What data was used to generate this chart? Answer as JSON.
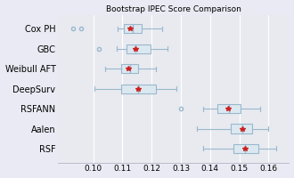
{
  "title": "Bootstrap IPEC Score Comparison",
  "categories": [
    "Cox PH",
    "GBC",
    "Weibull AFT",
    "DeepSurv",
    "RSFANN",
    "Aalen",
    "RSF"
  ],
  "xlim": [
    0.088,
    0.167
  ],
  "xticks": [
    0.1,
    0.11,
    0.12,
    0.13,
    0.14,
    0.15,
    0.16
  ],
  "boxes": [
    {
      "whislo": 0.1085,
      "q1": 0.1105,
      "med": 0.1135,
      "q3": 0.1165,
      "whishi": 0.1235,
      "mean": 0.1125,
      "fliers": [
        0.093,
        0.096
      ]
    },
    {
      "whislo": 0.108,
      "q1": 0.1115,
      "med": 0.1145,
      "q3": 0.1195,
      "whishi": 0.1255,
      "mean": 0.1145,
      "fliers": [
        0.102
      ]
    },
    {
      "whislo": 0.104,
      "q1": 0.1095,
      "med": 0.1125,
      "q3": 0.1155,
      "whishi": 0.1215,
      "mean": 0.112,
      "fliers": []
    },
    {
      "whislo": 0.1005,
      "q1": 0.1095,
      "med": 0.1155,
      "q3": 0.1215,
      "whishi": 0.1285,
      "mean": 0.1155,
      "fliers": []
    },
    {
      "whislo": 0.1375,
      "q1": 0.1425,
      "med": 0.1465,
      "q3": 0.1505,
      "whishi": 0.157,
      "mean": 0.146,
      "fliers": [
        0.13
      ]
    },
    {
      "whislo": 0.1355,
      "q1": 0.147,
      "med": 0.151,
      "q3": 0.1545,
      "whishi": 0.16,
      "mean": 0.151,
      "fliers": []
    },
    {
      "whislo": 0.1375,
      "q1": 0.148,
      "med": 0.152,
      "q3": 0.1565,
      "whishi": 0.1625,
      "mean": 0.152,
      "fliers": []
    }
  ],
  "box_facecolor": "#dce8f0",
  "box_edgecolor": "#9ab8cc",
  "whisker_color": "#9ab8cc",
  "flier_color": "#9ab8cc",
  "mean_color": "#cc2222",
  "median_color": "#9ab8cc",
  "background_color": "#eaeaf4",
  "plot_bg_color": "#e8eaf0",
  "title_fontsize": 6.5,
  "label_fontsize": 7,
  "tick_fontsize": 6.5
}
